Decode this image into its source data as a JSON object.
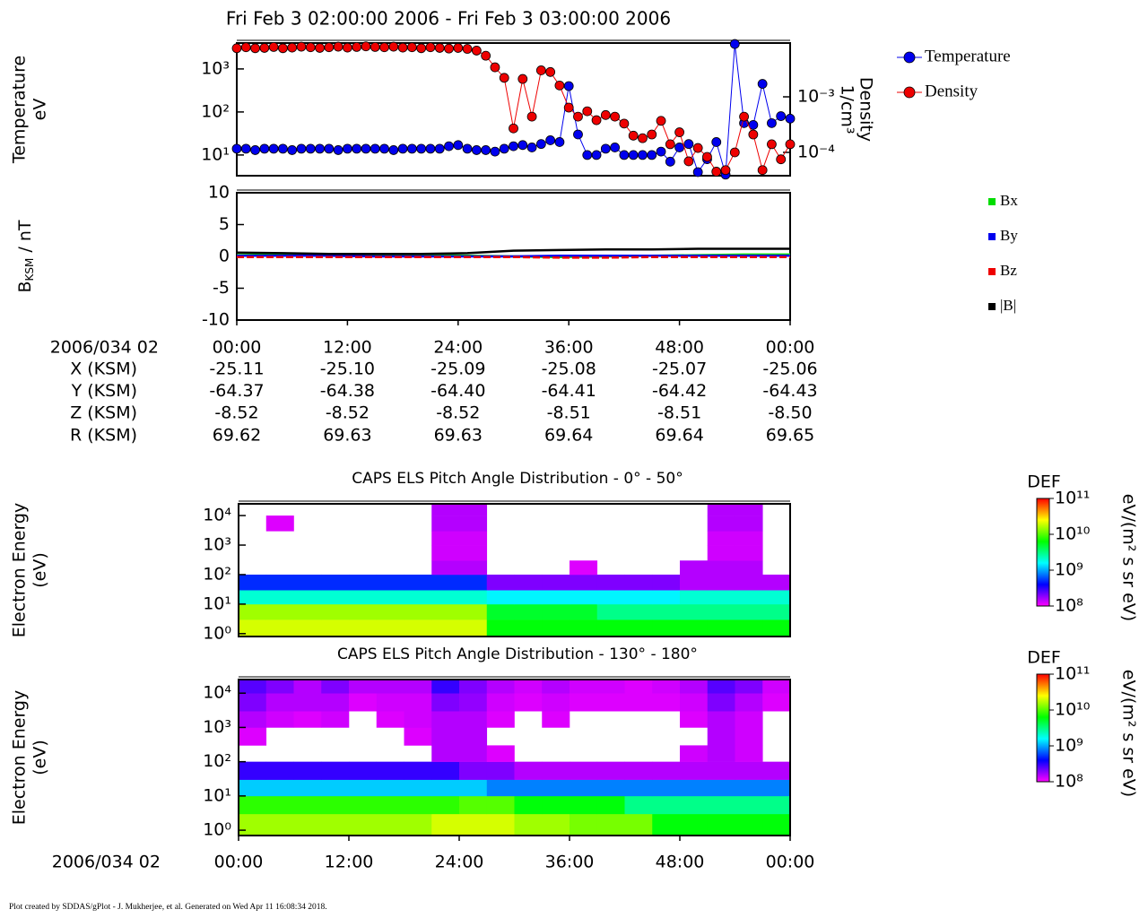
{
  "chart_data": [
    {
      "type": "line",
      "title": "Fri Feb 3 02:00:00 2006 - Fri Feb 3 03:00:00 2006",
      "ylabel": [
        "Temperature",
        "eV"
      ],
      "y2label": [
        "Density",
        "1/cm³"
      ],
      "ylog": true,
      "y2log": true,
      "xlim": [
        0,
        60
      ],
      "ylim": [
        3.3,
        4000
      ],
      "yticks": [
        {
          "value": 10,
          "label": "10¹"
        },
        {
          "value": 100,
          "label": "10²"
        },
        {
          "value": 1000,
          "label": "10³"
        }
      ],
      "y2lim": [
        3.8e-05,
        0.0093
      ],
      "y2ticks": [
        {
          "value": 0.001,
          "label": "10⁻³"
        },
        {
          "value": 0.0001,
          "label": "10⁻⁴"
        }
      ],
      "legend": "right",
      "x": [
        0,
        1,
        2,
        3,
        4,
        5,
        6,
        7,
        8,
        9,
        10,
        11,
        12,
        13,
        14,
        15,
        16,
        17,
        18,
        19,
        20,
        21,
        22,
        23,
        24,
        25,
        26,
        27,
        28,
        29,
        30,
        31,
        32,
        33,
        34,
        35,
        36,
        37,
        38,
        39,
        40,
        41,
        42,
        43,
        44,
        45,
        46,
        47,
        48,
        49,
        50,
        51,
        52,
        53,
        54,
        55,
        56,
        57,
        58,
        59,
        60
      ],
      "series": [
        {
          "name": "Temperature",
          "color": "#0000ee",
          "axis": "y",
          "values": [
            14,
            14,
            13,
            14,
            14,
            14,
            13,
            14,
            14,
            14,
            14,
            13,
            14,
            14,
            14,
            14,
            14,
            13,
            14,
            14,
            14,
            14,
            14,
            16,
            17,
            14,
            13,
            13,
            12,
            14,
            16,
            17,
            15,
            18,
            22,
            20,
            400,
            30,
            10,
            10,
            14,
            15,
            10,
            10,
            10,
            10,
            12,
            7,
            15,
            18,
            4,
            8,
            20,
            3.5,
            3800,
            55,
            50,
            450,
            55,
            80,
            70
          ]
        },
        {
          "name": "Density",
          "color": "#ee0000",
          "axis": "y2",
          "values": [
            0.0075,
            0.0078,
            0.0075,
            0.0076,
            0.0079,
            0.0075,
            0.0077,
            0.008,
            0.0078,
            0.0076,
            0.0078,
            0.008,
            0.0077,
            0.0079,
            0.0081,
            0.0079,
            0.0078,
            0.008,
            0.0077,
            0.0078,
            0.0075,
            0.0078,
            0.0076,
            0.0074,
            0.0076,
            0.0073,
            0.0068,
            0.0055,
            0.0034,
            0.0022,
            0.00027,
            0.0021,
            0.00044,
            0.003,
            0.0028,
            0.0016,
            0.00064,
            0.00044,
            0.00055,
            0.00038,
            0.00047,
            0.00044,
            0.00033,
            0.0002,
            0.00018,
            0.00021,
            0.00037,
            0.00014,
            0.00023,
            6.9e-05,
            0.00012,
            8.3e-05,
            4.5e-05,
            4.8e-05,
            0.0001,
            0.00044,
            0.00021,
            4.8e-05,
            0.00014,
            7.5e-05,
            0.00014
          ]
        }
      ]
    },
    {
      "type": "line",
      "ylabel_parts": [
        "B",
        "KSM",
        " / nT"
      ],
      "xlim": [
        0,
        60
      ],
      "xticks": [
        {
          "value": 0,
          "label": "00:00"
        },
        {
          "value": 12,
          "label": "12:00"
        },
        {
          "value": 24,
          "label": "24:00"
        },
        {
          "value": 36,
          "label": "36:00"
        },
        {
          "value": 48,
          "label": "48:00"
        },
        {
          "value": 60,
          "label": "00:00"
        }
      ],
      "ylim": [
        -10,
        10
      ],
      "yticks": [
        -10,
        -5,
        0,
        5,
        10
      ],
      "legend": "right",
      "x": [
        0,
        5,
        10,
        15,
        20,
        25,
        30,
        35,
        40,
        45,
        50,
        55,
        60
      ],
      "series": [
        {
          "name": "Bx",
          "color": "#00dd00",
          "values": [
            0.5,
            0.4,
            0.3,
            0.2,
            0.2,
            0.1,
            0.0,
            -0.1,
            0.0,
            0.1,
            0.2,
            0.3,
            0.3
          ]
        },
        {
          "name": "By",
          "color": "#0000ee",
          "values": [
            0.1,
            0.1,
            0.1,
            0.0,
            0.0,
            0.0,
            0.0,
            0.1,
            0.1,
            0.1,
            0.1,
            0.1,
            0.1
          ]
        },
        {
          "name": "Bz",
          "color": "#ee0000",
          "values": [
            -0.1,
            -0.1,
            -0.1,
            -0.1,
            -0.1,
            -0.1,
            -0.1,
            -0.2,
            -0.2,
            -0.1,
            -0.1,
            -0.1,
            -0.1
          ]
        },
        {
          "name": "|B|",
          "color": "#000000",
          "values": [
            0.6,
            0.5,
            0.4,
            0.4,
            0.4,
            0.5,
            0.9,
            1.0,
            1.1,
            1.1,
            1.2,
            1.2,
            1.2
          ]
        }
      ],
      "ephemeris": {
        "label": "2006/034 02",
        "rows": [
          {
            "name": "X (KSM)",
            "values": [
              "-25.11",
              "-25.10",
              "-25.09",
              "-25.08",
              "-25.07",
              "-25.06"
            ]
          },
          {
            "name": "Y (KSM)",
            "values": [
              "-64.37",
              "-64.38",
              "-64.40",
              "-64.41",
              "-64.42",
              "-64.43"
            ]
          },
          {
            "name": "Z (KSM)",
            "values": [
              "-8.52",
              "-8.52",
              "-8.52",
              "-8.51",
              "-8.51",
              "-8.50"
            ]
          },
          {
            "name": "R (KSM)",
            "values": [
              "69.62",
              "69.63",
              "69.63",
              "69.64",
              "69.64",
              "69.65"
            ]
          }
        ]
      }
    },
    {
      "type": "heatmap",
      "title": "CAPS ELS Pitch Angle Distribution - 0° - 50°",
      "ylabel": [
        "Electron Energy",
        "(eV)"
      ],
      "ylog": true,
      "xlim": [
        0,
        60
      ],
      "ylim": [
        0.8,
        25000
      ],
      "yticks": [
        {
          "value": 1,
          "label": "10⁰"
        },
        {
          "value": 10,
          "label": "10¹"
        },
        {
          "value": 100,
          "label": "10²"
        },
        {
          "value": 1000,
          "label": "10³"
        },
        {
          "value": 10000,
          "label": "10⁴"
        }
      ],
      "time_bins": [
        0,
        3,
        6,
        9,
        12,
        15,
        18,
        21,
        24,
        27,
        30,
        33,
        36,
        39,
        42,
        45,
        48,
        51,
        54,
        57,
        60
      ],
      "energy_bins": [
        0.8,
        3,
        10,
        30,
        100,
        300,
        1000,
        3000,
        10000,
        25000
      ],
      "values": [
        [
          20000000000.0,
          20000000000.0,
          20000000000.0,
          20000000000.0,
          20000000000.0,
          20000000000.0,
          20000000000.0,
          20000000000.0,
          20000000000.0,
          6000000000.0,
          6000000000.0,
          6000000000.0,
          6000000000.0,
          6000000000.0,
          6000000000.0,
          6000000000.0,
          6000000000.0,
          6000000000.0,
          6000000000.0,
          6000000000.0
        ],
        [
          15000000000.0,
          15000000000.0,
          15000000000.0,
          15000000000.0,
          15000000000.0,
          15000000000.0,
          15000000000.0,
          15000000000.0,
          15000000000.0,
          5000000000.0,
          5000000000.0,
          5000000000.0,
          5000000000.0,
          3000000000.0,
          3000000000.0,
          3000000000.0,
          3000000000.0,
          3000000000.0,
          3000000000.0,
          3000000000.0
        ],
        [
          2000000000.0,
          2000000000.0,
          2000000000.0,
          2000000000.0,
          2000000000.0,
          2000000000.0,
          2000000000.0,
          2000000000.0,
          2000000000.0,
          1500000000.0,
          1500000000.0,
          1500000000.0,
          1500000000.0,
          1500000000.0,
          1500000000.0,
          1500000000.0,
          2000000000.0,
          2000000000.0,
          2000000000.0,
          2000000000.0
        ],
        [
          500000000.0,
          500000000.0,
          500000000.0,
          500000000.0,
          500000000.0,
          500000000.0,
          500000000.0,
          500000000.0,
          500000000.0,
          200000000.0,
          200000000.0,
          200000000.0,
          200000000.0,
          200000000.0,
          200000000.0,
          200000000.0,
          150000000.0,
          150000000.0,
          150000000.0,
          150000000.0
        ],
        [
          null,
          null,
          null,
          null,
          null,
          null,
          null,
          150000000.0,
          150000000.0,
          null,
          null,
          null,
          120000000.0,
          null,
          null,
          null,
          150000000.0,
          150000000.0,
          150000000.0,
          null
        ],
        [
          null,
          null,
          null,
          null,
          null,
          null,
          null,
          130000000.0,
          130000000.0,
          null,
          null,
          null,
          null,
          null,
          null,
          null,
          null,
          130000000.0,
          130000000.0,
          null
        ],
        [
          null,
          null,
          null,
          null,
          null,
          null,
          null,
          130000000.0,
          130000000.0,
          null,
          null,
          null,
          null,
          null,
          null,
          null,
          null,
          130000000.0,
          130000000.0,
          null
        ],
        [
          null,
          120000000.0,
          null,
          null,
          null,
          null,
          null,
          150000000.0,
          150000000.0,
          null,
          null,
          null,
          null,
          null,
          null,
          null,
          null,
          150000000.0,
          150000000.0,
          null
        ],
        [
          null,
          null,
          null,
          null,
          null,
          null,
          null,
          150000000.0,
          150000000.0,
          null,
          null,
          null,
          null,
          null,
          null,
          null,
          null,
          150000000.0,
          150000000.0,
          null
        ]
      ],
      "colorbar": {
        "label": "DEF",
        "unit": "eV/(m² s sr eV)",
        "log": true,
        "zlim": [
          100000000.0,
          100000000000.0
        ],
        "zticks": [
          {
            "value": 100000000.0,
            "label": "10⁸"
          },
          {
            "value": 1000000000.0,
            "label": "10⁹"
          },
          {
            "value": 10000000000.0,
            "label": "10¹⁰"
          },
          {
            "value": 100000000000.0,
            "label": "10¹¹"
          }
        ]
      }
    },
    {
      "type": "heatmap",
      "title": "CAPS ELS Pitch Angle Distribution - 130° - 180°",
      "ylabel": [
        "Electron Energy",
        "(eV)"
      ],
      "ylog": true,
      "xlabel": "2006/034 02",
      "xlim": [
        0,
        60
      ],
      "xticks": [
        {
          "value": 0,
          "label": "00:00"
        },
        {
          "value": 12,
          "label": "12:00"
        },
        {
          "value": 24,
          "label": "24:00"
        },
        {
          "value": 36,
          "label": "36:00"
        },
        {
          "value": 48,
          "label": "48:00"
        },
        {
          "value": 60,
          "label": "00:00"
        }
      ],
      "ylim": [
        0.7,
        25000
      ],
      "yticks": [
        {
          "value": 1,
          "label": "10⁰"
        },
        {
          "value": 10,
          "label": "10¹"
        },
        {
          "value": 100,
          "label": "10²"
        },
        {
          "value": 1000,
          "label": "10³"
        },
        {
          "value": 10000,
          "label": "10⁴"
        }
      ],
      "time_bins": [
        0,
        3,
        6,
        9,
        12,
        15,
        18,
        21,
        24,
        27,
        30,
        33,
        36,
        39,
        42,
        45,
        48,
        51,
        54,
        57,
        60
      ],
      "energy_bins": [
        0.7,
        3,
        10,
        30,
        100,
        300,
        1000,
        3000,
        10000,
        25000
      ],
      "values": [
        [
          15000000000.0,
          15000000000.0,
          15000000000.0,
          15000000000.0,
          15000000000.0,
          15000000000.0,
          15000000000.0,
          20000000000.0,
          20000000000.0,
          20000000000.0,
          15000000000.0,
          15000000000.0,
          12000000000.0,
          12000000000.0,
          12000000000.0,
          6000000000.0,
          6000000000.0,
          6000000000.0,
          6000000000.0,
          6000000000.0
        ],
        [
          8000000000.0,
          8000000000.0,
          8000000000.0,
          8000000000.0,
          8000000000.0,
          8000000000.0,
          8000000000.0,
          8000000000.0,
          10000000000.0,
          10000000000.0,
          6000000000.0,
          6000000000.0,
          6000000000.0,
          6000000000.0,
          3000000000.0,
          3000000000.0,
          3000000000.0,
          3000000000.0,
          3000000000.0,
          3000000000.0
        ],
        [
          1200000000.0,
          1200000000.0,
          1200000000.0,
          1200000000.0,
          1200000000.0,
          1200000000.0,
          1200000000.0,
          1200000000.0,
          1200000000.0,
          800000000.0,
          800000000.0,
          800000000.0,
          800000000.0,
          800000000.0,
          800000000.0,
          800000000.0,
          800000000.0,
          800000000.0,
          800000000.0,
          800000000.0
        ],
        [
          300000000.0,
          300000000.0,
          300000000.0,
          300000000.0,
          300000000.0,
          300000000.0,
          300000000.0,
          300000000.0,
          200000000.0,
          200000000.0,
          150000000.0,
          150000000.0,
          150000000.0,
          150000000.0,
          150000000.0,
          150000000.0,
          150000000.0,
          150000000.0,
          150000000.0,
          150000000.0
        ],
        [
          null,
          null,
          null,
          null,
          null,
          null,
          null,
          150000000.0,
          150000000.0,
          120000000.0,
          null,
          null,
          null,
          null,
          null,
          null,
          130000000.0,
          150000000.0,
          130000000.0,
          null
        ],
        [
          120000000.0,
          null,
          null,
          null,
          null,
          null,
          120000000.0,
          150000000.0,
          150000000.0,
          null,
          null,
          null,
          null,
          null,
          null,
          null,
          null,
          150000000.0,
          130000000.0,
          null
        ],
        [
          150000000.0,
          130000000.0,
          120000000.0,
          130000000.0,
          null,
          120000000.0,
          130000000.0,
          150000000.0,
          150000000.0,
          120000000.0,
          null,
          120000000.0,
          null,
          null,
          null,
          null,
          120000000.0,
          150000000.0,
          130000000.0,
          null
        ],
        [
          200000000.0,
          150000000.0,
          150000000.0,
          150000000.0,
          120000000.0,
          130000000.0,
          130000000.0,
          200000000.0,
          180000000.0,
          130000000.0,
          120000000.0,
          130000000.0,
          120000000.0,
          120000000.0,
          120000000.0,
          120000000.0,
          130000000.0,
          200000000.0,
          150000000.0,
          120000000.0
        ],
        [
          250000000.0,
          200000000.0,
          150000000.0,
          200000000.0,
          150000000.0,
          150000000.0,
          150000000.0,
          300000000.0,
          200000000.0,
          150000000.0,
          130000000.0,
          150000000.0,
          130000000.0,
          130000000.0,
          120000000.0,
          130000000.0,
          150000000.0,
          250000000.0,
          200000000.0,
          130000000.0
        ]
      ],
      "colorbar": {
        "label": "DEF",
        "unit": "eV/(m² s sr eV)",
        "log": true,
        "zlim": [
          100000000.0,
          100000000000.0
        ],
        "zticks": [
          {
            "value": 100000000.0,
            "label": "10⁸"
          },
          {
            "value": 1000000000.0,
            "label": "10⁹"
          },
          {
            "value": 10000000000.0,
            "label": "10¹⁰"
          },
          {
            "value": 100000000000.0,
            "label": "10¹¹"
          }
        ]
      }
    }
  ],
  "footer": "Plot created by SDDAS/gPlot - J. Mukherjee, et al.  Generated on Wed Apr 11 16:08:34 2018."
}
